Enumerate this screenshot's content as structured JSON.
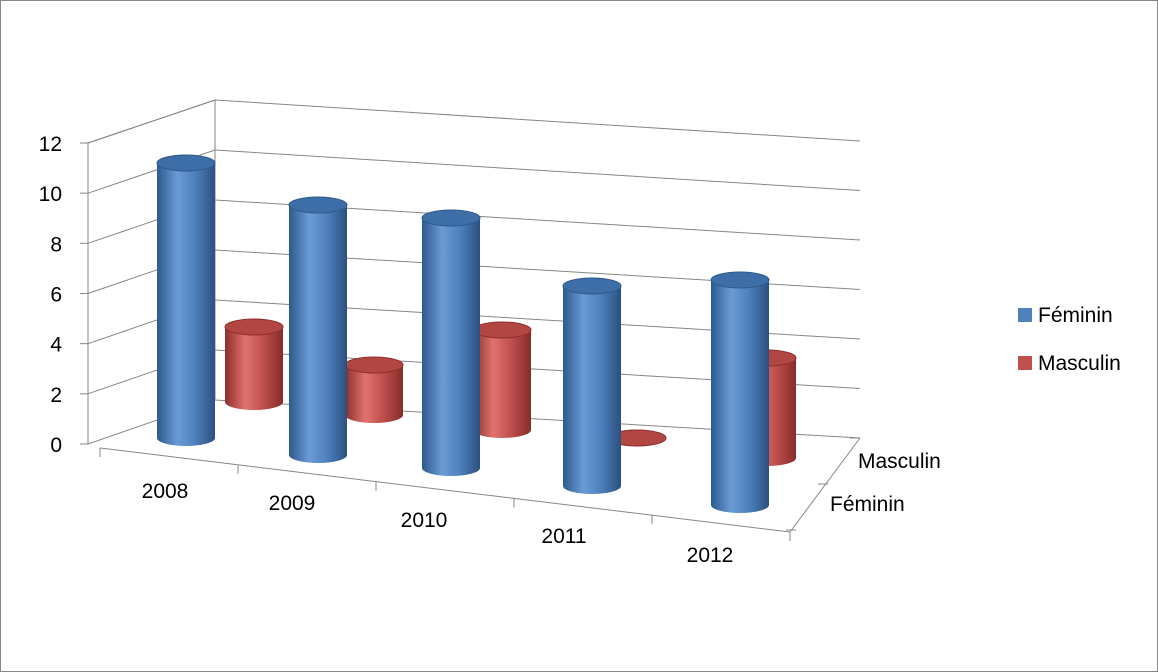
{
  "chart_data": {
    "type": "bar",
    "subtype": "3d-cylinder",
    "categories": [
      "2008",
      "2009",
      "2010",
      "2011",
      "2012"
    ],
    "series": [
      {
        "name": "Féminin",
        "color": "#4F81BD",
        "values": [
          11,
          10,
          10,
          8,
          9
        ]
      },
      {
        "name": "Masculin",
        "color": "#C0504D",
        "values": [
          3,
          2,
          4,
          0,
          4
        ]
      }
    ],
    "depth_labels": [
      "Masculin",
      "Féminin"
    ],
    "yticks": [
      "0",
      "2",
      "4",
      "6",
      "8",
      "10",
      "12"
    ],
    "ylim": [
      0,
      12
    ],
    "grid": true,
    "legend": "right"
  }
}
